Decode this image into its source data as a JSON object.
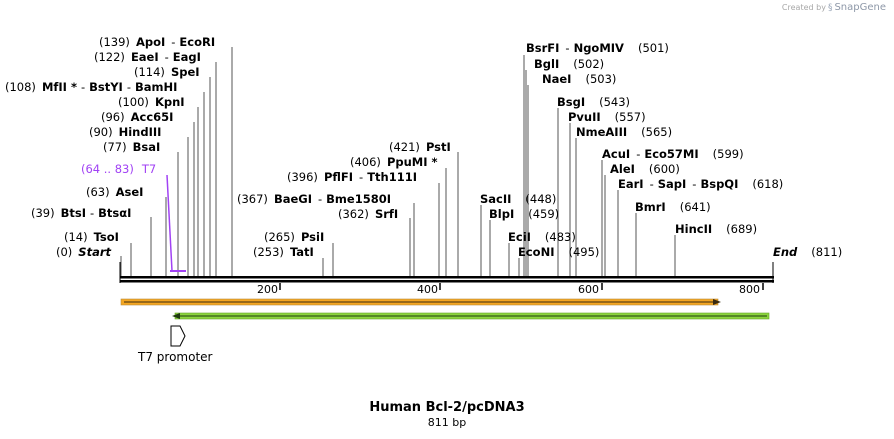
{
  "branding": {
    "created_by": "Created by",
    "app_name": "SnapGene",
    "logo_icon": "snapgene-logo-icon"
  },
  "map": {
    "title": "Human Bcl-2/pcDNA3",
    "length_label": "811 bp",
    "length": 811,
    "ticks": [
      200,
      400,
      600,
      800
    ],
    "start_label": "Start",
    "start_position": "(0)",
    "end_label": "End",
    "end_position": "(811)"
  },
  "sites": [
    {
      "pos": "(139)",
      "name": "ApoI",
      "name2": "EcoRI"
    },
    {
      "pos": "(122)",
      "name": "EaeI",
      "name2": "EagI"
    },
    {
      "pos": "(114)",
      "name": "SpeI"
    },
    {
      "pos": "(108)",
      "name": "MfII *",
      "name2": "BstYI",
      "name3": "BamHI"
    },
    {
      "pos": "(100)",
      "name": "KpnI"
    },
    {
      "pos": "(96)",
      "name": "Acc65I"
    },
    {
      "pos": "(90)",
      "name": "HindIII"
    },
    {
      "pos": "(77)",
      "name": "BsaI"
    },
    {
      "pos": "(64 .. 83)",
      "name": "T7"
    },
    {
      "pos": "(63)",
      "name": "AseI"
    },
    {
      "pos": "(39)",
      "name": "BtsI",
      "name2": "BtsαI"
    },
    {
      "pos": "(14)",
      "name": "TsoI"
    },
    {
      "pos": "(421)",
      "name": "PstI"
    },
    {
      "pos": "(406)",
      "name": "PpuMI *"
    },
    {
      "pos": "(396)",
      "name": "PflFI",
      "name2": "Tth111I"
    },
    {
      "pos": "(367)",
      "name": "BaeGI",
      "name2": "Bme1580I"
    },
    {
      "pos": "(362)",
      "name": "SrfI"
    },
    {
      "pos": "(265)",
      "name": "PsiI"
    },
    {
      "pos": "(253)",
      "name": "TatI"
    },
    {
      "pos": "(501)",
      "name": "BsrFI",
      "name2": "NgoMIV"
    },
    {
      "pos": "(502)",
      "name": "BglI"
    },
    {
      "pos": "(503)",
      "name": "NaeI"
    },
    {
      "pos": "(543)",
      "name": "BsgI"
    },
    {
      "pos": "(557)",
      "name": "PvuII"
    },
    {
      "pos": "(565)",
      "name": "NmeAIII"
    },
    {
      "pos": "(599)",
      "name": "AcuI",
      "name2": "Eco57MI"
    },
    {
      "pos": "(600)",
      "name": "AleI"
    },
    {
      "pos": "(618)",
      "name": "EarI",
      "name2": "SapI",
      "name3": "BspQI"
    },
    {
      "pos": "(641)",
      "name": "BmrI"
    },
    {
      "pos": "(689)",
      "name": "HincII"
    },
    {
      "pos": "(448)",
      "name": "SacII"
    },
    {
      "pos": "(459)",
      "name": "BlpI"
    },
    {
      "pos": "(483)",
      "name": "EciI"
    },
    {
      "pos": "(495)",
      "name": "EcoNI"
    }
  ],
  "features": {
    "t7_promoter_label": "T7 promoter",
    "orange_fill": "#f4a622",
    "green_fill": "#8bd43d",
    "purple": "#a142f4"
  }
}
